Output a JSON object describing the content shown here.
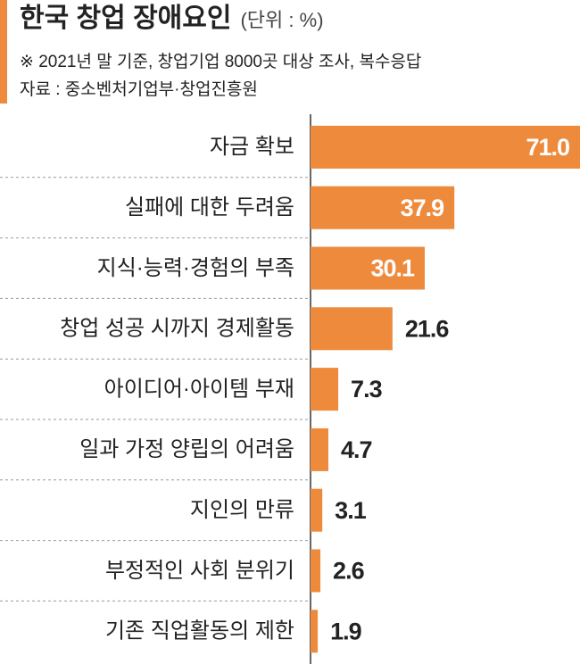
{
  "chart_data": {
    "type": "bar",
    "orientation": "horizontal",
    "title": "한국 창업 장애요인",
    "unit": "(단위 : %)",
    "subtitle": "※ 2021년 말 기준, 창업기업 8000곳 대상 조사, 복수응답",
    "source": "자료 : 중소벤처기업부·창업진흥원",
    "categories": [
      "자금 확보",
      "실패에 대한 두려움",
      "지식·능력·경험의 부족",
      "창업 성공 시까지 경제활동",
      "아이디어·아이템 부재",
      "일과 가정 양립의 어려움",
      "지인의 만류",
      "부정적인 사회 분위기",
      "기존 직업활동의 제한"
    ],
    "values": [
      71.0,
      37.9,
      30.1,
      21.6,
      7.3,
      4.7,
      3.1,
      2.6,
      1.9
    ],
    "value_labels": [
      "71.0",
      "37.9",
      "30.1",
      "21.6",
      "7.3",
      "4.7",
      "3.1",
      "2.6",
      "1.9"
    ],
    "color": "#ee8a3c"
  }
}
